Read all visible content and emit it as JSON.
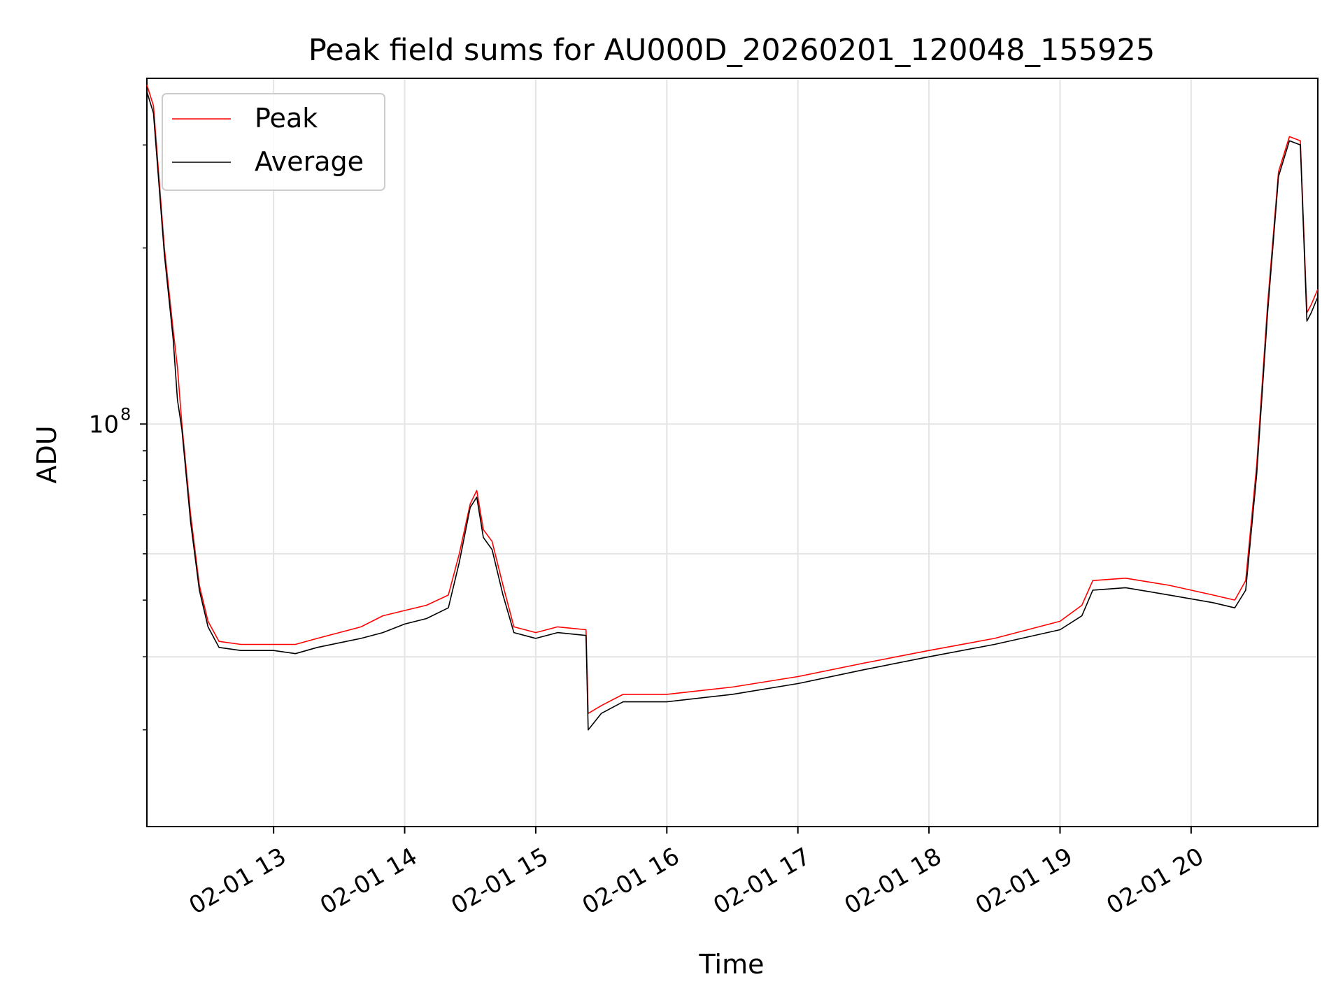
{
  "chart_data": {
    "type": "line",
    "title": "Peak field sums for AU000D_20260201_120048_155925",
    "xlabel": "Time",
    "ylabel": "ADU",
    "y_scale": "log",
    "xlim": [
      "2026-02-01 12:02",
      "2026-02-01 20:58"
    ],
    "ylim": [
      20500000,
      390000000
    ],
    "x_ticks": [
      "02-01 13",
      "02-01 14",
      "02-01 15",
      "02-01 16",
      "02-01 17",
      "02-01 18",
      "02-01 19",
      "02-01 20"
    ],
    "y_ticks": [
      {
        "value": 100000000,
        "base": "10",
        "exp": "8"
      }
    ],
    "grid": true,
    "legend_position": "upper left",
    "series": [
      {
        "name": "Peak",
        "color": "#ff0000",
        "x": [
          "2026-02-01 12:02",
          "2026-02-01 12:05",
          "2026-02-01 12:10",
          "2026-02-01 12:14",
          "2026-02-01 12:16",
          "2026-02-01 12:18",
          "2026-02-01 12:22",
          "2026-02-01 12:26",
          "2026-02-01 12:30",
          "2026-02-01 12:35",
          "2026-02-01 12:45",
          "2026-02-01 13:00",
          "2026-02-01 13:10",
          "2026-02-01 13:20",
          "2026-02-01 13:40",
          "2026-02-01 13:50",
          "2026-02-01 14:00",
          "2026-02-01 14:10",
          "2026-02-01 14:20",
          "2026-02-01 14:25",
          "2026-02-01 14:30",
          "2026-02-01 14:33",
          "2026-02-01 14:36",
          "2026-02-01 14:40",
          "2026-02-01 14:45",
          "2026-02-01 14:50",
          "2026-02-01 15:00",
          "2026-02-01 15:10",
          "2026-02-01 15:23",
          "2026-02-01 15:24",
          "2026-02-01 15:30",
          "2026-02-01 15:40",
          "2026-02-01 16:00",
          "2026-02-01 16:30",
          "2026-02-01 17:00",
          "2026-02-01 17:30",
          "2026-02-01 18:00",
          "2026-02-01 18:30",
          "2026-02-01 19:00",
          "2026-02-01 19:10",
          "2026-02-01 19:15",
          "2026-02-01 19:30",
          "2026-02-01 19:50",
          "2026-02-01 20:10",
          "2026-02-01 20:20",
          "2026-02-01 20:25",
          "2026-02-01 20:30",
          "2026-02-01 20:35",
          "2026-02-01 20:40",
          "2026-02-01 20:45",
          "2026-02-01 20:50",
          "2026-02-01 20:53",
          "2026-02-01 20:55",
          "2026-02-01 20:58"
        ],
        "y": [
          380000000,
          350000000,
          200000000,
          145000000,
          125000000,
          100000000,
          70000000,
          53000000,
          46000000,
          42500000,
          42000000,
          42000000,
          42000000,
          43000000,
          45000000,
          47000000,
          48000000,
          49000000,
          51000000,
          60000000,
          73000000,
          77000000,
          66000000,
          63000000,
          53000000,
          45000000,
          44000000,
          45000000,
          44500000,
          32000000,
          33000000,
          34500000,
          34500000,
          35500000,
          37000000,
          39000000,
          41000000,
          43000000,
          46000000,
          49000000,
          54000000,
          54500000,
          53000000,
          51000000,
          50000000,
          54000000,
          85000000,
          160000000,
          270000000,
          310000000,
          305000000,
          155000000,
          160000000,
          170000000
        ]
      },
      {
        "name": "Average",
        "color": "#000000",
        "x": [
          "2026-02-01 12:02",
          "2026-02-01 12:05",
          "2026-02-01 12:10",
          "2026-02-01 12:14",
          "2026-02-01 12:16",
          "2026-02-01 12:18",
          "2026-02-01 12:22",
          "2026-02-01 12:26",
          "2026-02-01 12:30",
          "2026-02-01 12:35",
          "2026-02-01 12:45",
          "2026-02-01 13:00",
          "2026-02-01 13:10",
          "2026-02-01 13:20",
          "2026-02-01 13:40",
          "2026-02-01 13:50",
          "2026-02-01 14:00",
          "2026-02-01 14:10",
          "2026-02-01 14:20",
          "2026-02-01 14:25",
          "2026-02-01 14:30",
          "2026-02-01 14:33",
          "2026-02-01 14:36",
          "2026-02-01 14:40",
          "2026-02-01 14:45",
          "2026-02-01 14:50",
          "2026-02-01 15:00",
          "2026-02-01 15:10",
          "2026-02-01 15:23",
          "2026-02-01 15:24",
          "2026-02-01 15:30",
          "2026-02-01 15:40",
          "2026-02-01 16:00",
          "2026-02-01 16:30",
          "2026-02-01 17:00",
          "2026-02-01 17:30",
          "2026-02-01 18:00",
          "2026-02-01 18:30",
          "2026-02-01 19:00",
          "2026-02-01 19:10",
          "2026-02-01 19:15",
          "2026-02-01 19:30",
          "2026-02-01 19:50",
          "2026-02-01 20:10",
          "2026-02-01 20:20",
          "2026-02-01 20:25",
          "2026-02-01 20:30",
          "2026-02-01 20:35",
          "2026-02-01 20:40",
          "2026-02-01 20:45",
          "2026-02-01 20:50",
          "2026-02-01 20:53",
          "2026-02-01 20:55",
          "2026-02-01 20:58"
        ],
        "y": [
          370000000,
          340000000,
          195000000,
          140000000,
          110000000,
          98000000,
          68000000,
          52000000,
          45000000,
          41500000,
          41000000,
          41000000,
          40500000,
          41500000,
          43000000,
          44000000,
          45500000,
          46500000,
          48500000,
          58000000,
          72000000,
          75000000,
          64000000,
          61000000,
          51000000,
          44000000,
          43000000,
          44000000,
          43500000,
          30000000,
          32000000,
          33500000,
          33500000,
          34500000,
          36000000,
          38000000,
          40000000,
          42000000,
          44500000,
          47000000,
          52000000,
          52500000,
          51000000,
          49500000,
          48500000,
          52000000,
          82000000,
          155000000,
          265000000,
          305000000,
          300000000,
          150000000,
          155000000,
          165000000
        ]
      }
    ]
  }
}
